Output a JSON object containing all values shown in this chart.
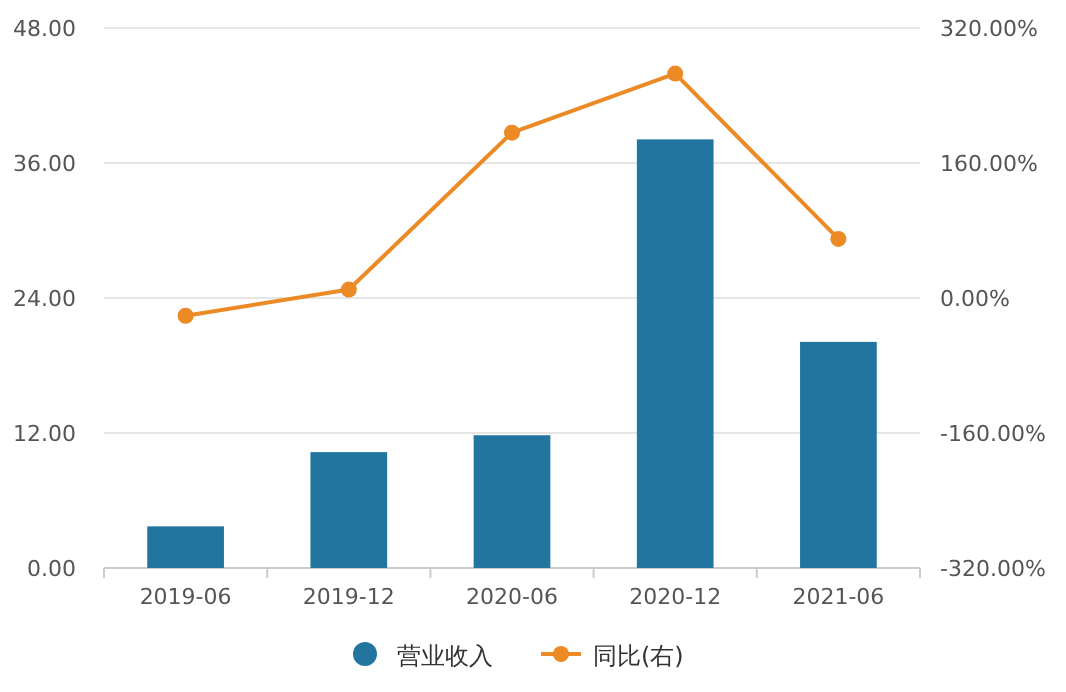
{
  "chart_data": {
    "type": "bar",
    "categories": [
      "2019-06",
      "2019-12",
      "2020-06",
      "2020-12",
      "2021-06"
    ],
    "series": [
      {
        "name": "营业收入",
        "color": "#21759f",
        "values": [
          3.7,
          10.3,
          11.8,
          38.1,
          20.1
        ]
      },
      {
        "name": "同比(右)",
        "type": "line",
        "axis": "y2",
        "color": "#ec8a25",
        "marker": "circle",
        "values": [
          -21,
          10,
          196,
          266,
          70
        ]
      }
    ],
    "ylim": [
      0,
      48
    ],
    "yticks": [
      {
        "value": 0,
        "label": "0.00"
      },
      {
        "value": 12,
        "label": "12.00"
      },
      {
        "value": 24,
        "label": "24.00"
      },
      {
        "value": 36,
        "label": "36.00"
      },
      {
        "value": 48,
        "label": "48.00"
      }
    ],
    "y2lim": [
      -320,
      320
    ],
    "y2ticks": [
      {
        "value": -320,
        "label": "-320.00%"
      },
      {
        "value": -160,
        "label": "-160.00%"
      },
      {
        "value": 0,
        "label": "0.00%"
      },
      {
        "value": 160,
        "label": "160.00%"
      },
      {
        "value": 320,
        "label": "320.00%"
      }
    ],
    "grid": "y",
    "legend": "bottom"
  }
}
